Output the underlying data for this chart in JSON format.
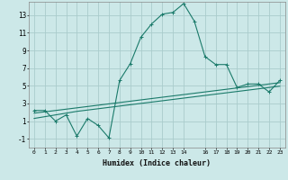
{
  "title": "",
  "xlabel": "Humidex (Indice chaleur)",
  "background_color": "#cce8e8",
  "grid_color": "#aacccc",
  "line_color": "#1a7a6a",
  "xlim": [
    -0.5,
    23.5
  ],
  "ylim": [
    -2.0,
    14.5
  ],
  "xticks": [
    0,
    1,
    2,
    3,
    4,
    5,
    6,
    7,
    8,
    9,
    10,
    11,
    12,
    13,
    14,
    16,
    17,
    18,
    19,
    20,
    21,
    22,
    23
  ],
  "xtick_labels": [
    "0",
    "1",
    "2",
    "3",
    "4",
    "5",
    "6",
    "7",
    "8",
    "9",
    "10",
    "11",
    "12",
    "13",
    "14",
    "16",
    "17",
    "18",
    "19",
    "20",
    "21",
    "22",
    "23"
  ],
  "yticks": [
    -1,
    1,
    3,
    5,
    7,
    9,
    11,
    13
  ],
  "line1_x": [
    0,
    1,
    2,
    3,
    4,
    5,
    6,
    7,
    8,
    9,
    10,
    11,
    12,
    13,
    14,
    15,
    16,
    17,
    18,
    19,
    20,
    21,
    22,
    23
  ],
  "line1_y": [
    2.2,
    2.2,
    1.0,
    1.7,
    -0.7,
    1.3,
    0.5,
    -0.9,
    5.6,
    7.5,
    10.5,
    12.0,
    13.1,
    13.3,
    14.3,
    12.3,
    8.3,
    7.4,
    7.4,
    4.8,
    5.2,
    5.2,
    4.3,
    5.6
  ],
  "line2_x": [
    0,
    1,
    2,
    3,
    4,
    5,
    6,
    7,
    8,
    9,
    10,
    11,
    12,
    13,
    14,
    15,
    16,
    17,
    18,
    19,
    20,
    21,
    22,
    23
  ],
  "line2_y": [
    1.9,
    2.05,
    2.2,
    2.35,
    2.5,
    2.65,
    2.8,
    2.95,
    3.1,
    3.25,
    3.4,
    3.55,
    3.7,
    3.85,
    4.0,
    4.15,
    4.3,
    4.45,
    4.6,
    4.75,
    4.9,
    5.05,
    5.2,
    5.35
  ],
  "line3_x": [
    0,
    1,
    2,
    3,
    4,
    5,
    6,
    7,
    8,
    9,
    10,
    11,
    12,
    13,
    14,
    15,
    16,
    17,
    18,
    19,
    20,
    21,
    22,
    23
  ],
  "line3_y": [
    1.3,
    1.5,
    1.7,
    1.9,
    2.1,
    2.25,
    2.4,
    2.55,
    2.7,
    2.85,
    3.0,
    3.15,
    3.3,
    3.45,
    3.6,
    3.75,
    3.9,
    4.05,
    4.2,
    4.35,
    4.5,
    4.65,
    4.8,
    4.95
  ]
}
